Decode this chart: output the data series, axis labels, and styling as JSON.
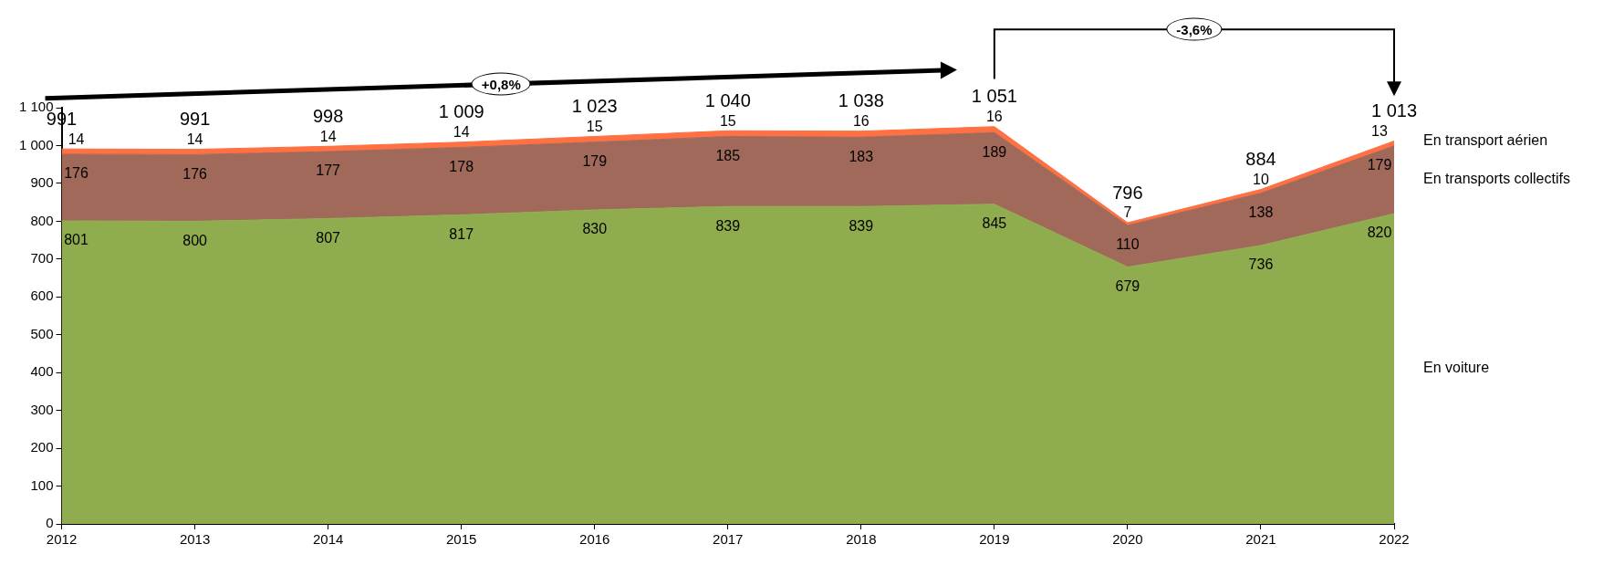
{
  "chart_data": {
    "type": "area",
    "stacked": true,
    "categories": [
      "2012",
      "2013",
      "2014",
      "2015",
      "2016",
      "2017",
      "2018",
      "2019",
      "2020",
      "2021",
      "2022"
    ],
    "series": [
      {
        "name": "En voiture",
        "color": "#8fad4e",
        "values": [
          801,
          800,
          807,
          817,
          830,
          839,
          839,
          845,
          679,
          736,
          820
        ]
      },
      {
        "name": "En transports collectifs",
        "color": "#a0695a",
        "values": [
          176,
          176,
          177,
          178,
          179,
          185,
          183,
          189,
          110,
          138,
          179
        ]
      },
      {
        "name": "En transport aérien",
        "color": "#ff7043",
        "values": [
          14,
          14,
          14,
          14,
          15,
          15,
          16,
          16,
          7,
          10,
          13
        ]
      }
    ],
    "ylim": [
      0,
      1100
    ],
    "yticks": [
      0,
      100,
      200,
      300,
      400,
      500,
      600,
      700,
      800,
      900,
      {
        "value": 1000,
        "label": "1 000"
      },
      {
        "value": 1100,
        "label": "1 100"
      }
    ],
    "grid": false,
    "legend": false,
    "data_labels": true,
    "totals": [
      "991",
      "991",
      "998",
      "1 009",
      "1 023",
      "1 040",
      "1 038",
      "1 051",
      "796",
      "884",
      "1 013"
    ],
    "annotations": [
      "+0,8%",
      "-3,6%"
    ]
  }
}
